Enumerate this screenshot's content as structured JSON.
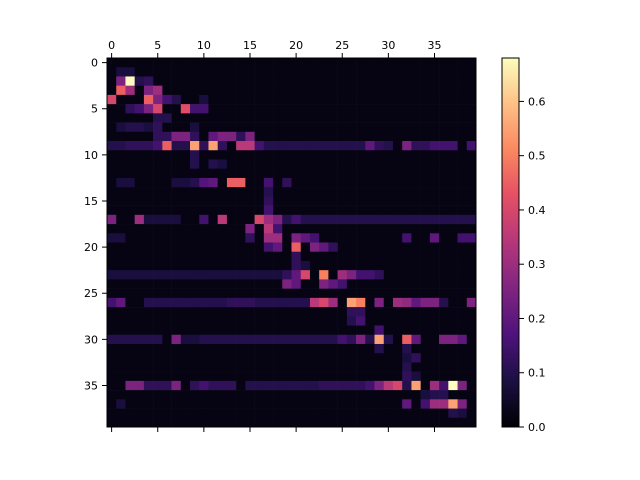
{
  "chart_data": {
    "type": "heatmap",
    "title": "",
    "xlabel": "",
    "ylabel": "",
    "rows": 40,
    "cols": 40,
    "x_axis_position": "top",
    "x_ticks": [
      0,
      5,
      10,
      15,
      20,
      25,
      30,
      35
    ],
    "y_ticks": [
      0,
      5,
      10,
      15,
      20,
      25,
      30,
      35
    ],
    "grid": false,
    "colormap": "magma",
    "colorbar": {
      "vmin": 0.0,
      "vmax": 0.68,
      "ticks": [
        0.0,
        0.1,
        0.2,
        0.3,
        0.4,
        0.5,
        0.6
      ],
      "tick_labels": [
        "0.0",
        "0.1",
        "0.2",
        "0.3",
        "0.4",
        "0.5",
        "0.6"
      ],
      "placement": "right"
    },
    "background_value": 0.02,
    "cells": [
      [
        1,
        1,
        0.08
      ],
      [
        1,
        2,
        0.08
      ],
      [
        2,
        1,
        0.25
      ],
      [
        2,
        2,
        0.68
      ],
      [
        2,
        3,
        0.1
      ],
      [
        2,
        4,
        0.12
      ],
      [
        3,
        1,
        0.45
      ],
      [
        3,
        2,
        0.3
      ],
      [
        3,
        4,
        0.25
      ],
      [
        3,
        5,
        0.3
      ],
      [
        4,
        0,
        0.4
      ],
      [
        4,
        4,
        0.45
      ],
      [
        4,
        5,
        0.25
      ],
      [
        4,
        6,
        0.15
      ],
      [
        4,
        7,
        0.1
      ],
      [
        4,
        10,
        0.08
      ],
      [
        5,
        2,
        0.12
      ],
      [
        5,
        3,
        0.15
      ],
      [
        5,
        4,
        0.25
      ],
      [
        5,
        5,
        0.4
      ],
      [
        5,
        8,
        0.42
      ],
      [
        5,
        9,
        0.15
      ],
      [
        5,
        10,
        0.15
      ],
      [
        6,
        5,
        0.1
      ],
      [
        6,
        6,
        0.1
      ],
      [
        7,
        1,
        0.08
      ],
      [
        7,
        2,
        0.1
      ],
      [
        7,
        3,
        0.1
      ],
      [
        7,
        4,
        0.08
      ],
      [
        7,
        5,
        0.12
      ],
      [
        7,
        9,
        0.08
      ],
      [
        8,
        5,
        0.12
      ],
      [
        8,
        6,
        0.12
      ],
      [
        8,
        7,
        0.25
      ],
      [
        8,
        8,
        0.25
      ],
      [
        8,
        9,
        0.12
      ],
      [
        8,
        11,
        0.2
      ],
      [
        8,
        12,
        0.25
      ],
      [
        8,
        13,
        0.25
      ],
      [
        8,
        14,
        0.12
      ],
      [
        8,
        15,
        0.25
      ],
      [
        9,
        0,
        0.1
      ],
      [
        9,
        1,
        0.1
      ],
      [
        9,
        2,
        0.12
      ],
      [
        9,
        3,
        0.12
      ],
      [
        9,
        4,
        0.12
      ],
      [
        9,
        5,
        0.15
      ],
      [
        9,
        6,
        0.45
      ],
      [
        9,
        7,
        0.1
      ],
      [
        9,
        8,
        0.1
      ],
      [
        9,
        9,
        0.55
      ],
      [
        9,
        10,
        0.12
      ],
      [
        9,
        11,
        0.55
      ],
      [
        9,
        12,
        0.12
      ],
      [
        9,
        14,
        0.35
      ],
      [
        9,
        15,
        0.35
      ],
      [
        9,
        16,
        0.15
      ],
      [
        9,
        17,
        0.1
      ],
      [
        9,
        18,
        0.1
      ],
      [
        9,
        19,
        0.1
      ],
      [
        9,
        20,
        0.1
      ],
      [
        9,
        21,
        0.1
      ],
      [
        9,
        22,
        0.1
      ],
      [
        9,
        23,
        0.1
      ],
      [
        9,
        24,
        0.1
      ],
      [
        9,
        25,
        0.1
      ],
      [
        9,
        26,
        0.1
      ],
      [
        9,
        27,
        0.1
      ],
      [
        9,
        28,
        0.2
      ],
      [
        9,
        29,
        0.12
      ],
      [
        9,
        30,
        0.1
      ],
      [
        9,
        32,
        0.25
      ],
      [
        9,
        33,
        0.12
      ],
      [
        9,
        34,
        0.12
      ],
      [
        9,
        35,
        0.15
      ],
      [
        9,
        36,
        0.15
      ],
      [
        9,
        37,
        0.15
      ],
      [
        9,
        39,
        0.15
      ],
      [
        10,
        9,
        0.1
      ],
      [
        11,
        9,
        0.1
      ],
      [
        11,
        11,
        0.1
      ],
      [
        11,
        12,
        0.08
      ],
      [
        13,
        1,
        0.08
      ],
      [
        13,
        2,
        0.08
      ],
      [
        13,
        7,
        0.08
      ],
      [
        13,
        8,
        0.08
      ],
      [
        13,
        9,
        0.1
      ],
      [
        13,
        10,
        0.18
      ],
      [
        13,
        11,
        0.2
      ],
      [
        13,
        13,
        0.45
      ],
      [
        13,
        14,
        0.45
      ],
      [
        13,
        17,
        0.15
      ],
      [
        13,
        19,
        0.12
      ],
      [
        14,
        17,
        0.1
      ],
      [
        15,
        17,
        0.12
      ],
      [
        16,
        17,
        0.15
      ],
      [
        17,
        0,
        0.25
      ],
      [
        17,
        3,
        0.3
      ],
      [
        17,
        4,
        0.08
      ],
      [
        17,
        5,
        0.08
      ],
      [
        17,
        6,
        0.08
      ],
      [
        17,
        7,
        0.08
      ],
      [
        17,
        10,
        0.15
      ],
      [
        17,
        12,
        0.35
      ],
      [
        17,
        16,
        0.4
      ],
      [
        17,
        17,
        0.3
      ],
      [
        17,
        18,
        0.25
      ],
      [
        17,
        19,
        0.1
      ],
      [
        17,
        20,
        0.15
      ],
      [
        17,
        21,
        0.1
      ],
      [
        17,
        22,
        0.1
      ],
      [
        17,
        23,
        0.1
      ],
      [
        17,
        24,
        0.1
      ],
      [
        17,
        25,
        0.1
      ],
      [
        17,
        26,
        0.1
      ],
      [
        17,
        27,
        0.1
      ],
      [
        17,
        28,
        0.1
      ],
      [
        17,
        29,
        0.1
      ],
      [
        17,
        30,
        0.1
      ],
      [
        17,
        31,
        0.1
      ],
      [
        17,
        32,
        0.1
      ],
      [
        17,
        33,
        0.1
      ],
      [
        17,
        34,
        0.1
      ],
      [
        17,
        35,
        0.1
      ],
      [
        17,
        36,
        0.1
      ],
      [
        17,
        37,
        0.1
      ],
      [
        17,
        38,
        0.1
      ],
      [
        17,
        39,
        0.1
      ],
      [
        18,
        15,
        0.25
      ],
      [
        18,
        17,
        0.35
      ],
      [
        18,
        18,
        0.15
      ],
      [
        19,
        0,
        0.08
      ],
      [
        19,
        1,
        0.08
      ],
      [
        19,
        15,
        0.12
      ],
      [
        19,
        17,
        0.3
      ],
      [
        19,
        18,
        0.3
      ],
      [
        19,
        20,
        0.25
      ],
      [
        19,
        21,
        0.2
      ],
      [
        19,
        22,
        0.15
      ],
      [
        19,
        32,
        0.15
      ],
      [
        19,
        35,
        0.2
      ],
      [
        19,
        38,
        0.15
      ],
      [
        19,
        39,
        0.15
      ],
      [
        20,
        17,
        0.15
      ],
      [
        20,
        18,
        0.2
      ],
      [
        20,
        20,
        0.45
      ],
      [
        20,
        22,
        0.25
      ],
      [
        20,
        23,
        0.2
      ],
      [
        20,
        24,
        0.12
      ],
      [
        21,
        20,
        0.12
      ],
      [
        22,
        20,
        0.12
      ],
      [
        22,
        21,
        0.08
      ],
      [
        23,
        0,
        0.08
      ],
      [
        23,
        1,
        0.08
      ],
      [
        23,
        2,
        0.08
      ],
      [
        23,
        3,
        0.08
      ],
      [
        23,
        4,
        0.08
      ],
      [
        23,
        5,
        0.08
      ],
      [
        23,
        6,
        0.08
      ],
      [
        23,
        7,
        0.08
      ],
      [
        23,
        8,
        0.08
      ],
      [
        23,
        9,
        0.08
      ],
      [
        23,
        10,
        0.08
      ],
      [
        23,
        11,
        0.08
      ],
      [
        23,
        12,
        0.08
      ],
      [
        23,
        13,
        0.08
      ],
      [
        23,
        14,
        0.08
      ],
      [
        23,
        15,
        0.08
      ],
      [
        23,
        16,
        0.08
      ],
      [
        23,
        17,
        0.08
      ],
      [
        23,
        18,
        0.08
      ],
      [
        23,
        19,
        0.12
      ],
      [
        23,
        20,
        0.2
      ],
      [
        23,
        21,
        0.4
      ],
      [
        23,
        23,
        0.5
      ],
      [
        23,
        25,
        0.3
      ],
      [
        23,
        26,
        0.25
      ],
      [
        23,
        27,
        0.15
      ],
      [
        23,
        28,
        0.15
      ],
      [
        23,
        29,
        0.12
      ],
      [
        24,
        19,
        0.25
      ],
      [
        24,
        20,
        0.2
      ],
      [
        24,
        23,
        0.25
      ],
      [
        24,
        24,
        0.2
      ],
      [
        24,
        25,
        0.15
      ],
      [
        26,
        0,
        0.15
      ],
      [
        26,
        1,
        0.2
      ],
      [
        26,
        4,
        0.1
      ],
      [
        26,
        5,
        0.1
      ],
      [
        26,
        6,
        0.1
      ],
      [
        26,
        7,
        0.1
      ],
      [
        26,
        8,
        0.1
      ],
      [
        26,
        9,
        0.1
      ],
      [
        26,
        10,
        0.1
      ],
      [
        26,
        11,
        0.1
      ],
      [
        26,
        12,
        0.1
      ],
      [
        26,
        13,
        0.12
      ],
      [
        26,
        14,
        0.12
      ],
      [
        26,
        15,
        0.12
      ],
      [
        26,
        16,
        0.1
      ],
      [
        26,
        17,
        0.1
      ],
      [
        26,
        18,
        0.1
      ],
      [
        26,
        19,
        0.1
      ],
      [
        26,
        20,
        0.1
      ],
      [
        26,
        21,
        0.1
      ],
      [
        26,
        22,
        0.35
      ],
      [
        26,
        23,
        0.4
      ],
      [
        26,
        24,
        0.3
      ],
      [
        26,
        26,
        0.55
      ],
      [
        26,
        27,
        0.5
      ],
      [
        26,
        29,
        0.25
      ],
      [
        26,
        31,
        0.3
      ],
      [
        26,
        32,
        0.28
      ],
      [
        26,
        33,
        0.2
      ],
      [
        26,
        34,
        0.25
      ],
      [
        26,
        35,
        0.25
      ],
      [
        26,
        36,
        0.1
      ],
      [
        26,
        39,
        0.25
      ],
      [
        27,
        26,
        0.12
      ],
      [
        27,
        27,
        0.12
      ],
      [
        28,
        26,
        0.1
      ],
      [
        28,
        27,
        0.15
      ],
      [
        29,
        29,
        0.15
      ],
      [
        30,
        0,
        0.1
      ],
      [
        30,
        1,
        0.1
      ],
      [
        30,
        2,
        0.1
      ],
      [
        30,
        3,
        0.1
      ],
      [
        30,
        4,
        0.1
      ],
      [
        30,
        5,
        0.1
      ],
      [
        30,
        7,
        0.25
      ],
      [
        30,
        8,
        0.08
      ],
      [
        30,
        9,
        0.08
      ],
      [
        30,
        10,
        0.1
      ],
      [
        30,
        11,
        0.1
      ],
      [
        30,
        12,
        0.1
      ],
      [
        30,
        13,
        0.1
      ],
      [
        30,
        14,
        0.1
      ],
      [
        30,
        15,
        0.1
      ],
      [
        30,
        16,
        0.1
      ],
      [
        30,
        17,
        0.1
      ],
      [
        30,
        18,
        0.1
      ],
      [
        30,
        19,
        0.1
      ],
      [
        30,
        20,
        0.1
      ],
      [
        30,
        21,
        0.1
      ],
      [
        30,
        22,
        0.1
      ],
      [
        30,
        23,
        0.1
      ],
      [
        30,
        24,
        0.1
      ],
      [
        30,
        25,
        0.15
      ],
      [
        30,
        26,
        0.12
      ],
      [
        30,
        27,
        0.25
      ],
      [
        30,
        28,
        0.1
      ],
      [
        30,
        29,
        0.55
      ],
      [
        30,
        30,
        0.1
      ],
      [
        30,
        32,
        0.45
      ],
      [
        30,
        33,
        0.2
      ],
      [
        30,
        36,
        0.25
      ],
      [
        30,
        37,
        0.25
      ],
      [
        30,
        38,
        0.2
      ],
      [
        31,
        29,
        0.1
      ],
      [
        31,
        32,
        0.1
      ],
      [
        32,
        32,
        0.08
      ],
      [
        32,
        33,
        0.12
      ],
      [
        33,
        32,
        0.1
      ],
      [
        34,
        32,
        0.12
      ],
      [
        34,
        33,
        0.08
      ],
      [
        35,
        2,
        0.25
      ],
      [
        35,
        3,
        0.25
      ],
      [
        35,
        4,
        0.12
      ],
      [
        35,
        5,
        0.12
      ],
      [
        35,
        6,
        0.12
      ],
      [
        35,
        7,
        0.25
      ],
      [
        35,
        9,
        0.12
      ],
      [
        35,
        10,
        0.15
      ],
      [
        35,
        11,
        0.12
      ],
      [
        35,
        12,
        0.12
      ],
      [
        35,
        13,
        0.12
      ],
      [
        35,
        15,
        0.1
      ],
      [
        35,
        16,
        0.1
      ],
      [
        35,
        17,
        0.1
      ],
      [
        35,
        18,
        0.1
      ],
      [
        35,
        19,
        0.1
      ],
      [
        35,
        20,
        0.1
      ],
      [
        35,
        21,
        0.1
      ],
      [
        35,
        22,
        0.1
      ],
      [
        35,
        23,
        0.12
      ],
      [
        35,
        24,
        0.12
      ],
      [
        35,
        25,
        0.12
      ],
      [
        35,
        26,
        0.12
      ],
      [
        35,
        27,
        0.12
      ],
      [
        35,
        28,
        0.15
      ],
      [
        35,
        29,
        0.25
      ],
      [
        35,
        30,
        0.35
      ],
      [
        35,
        31,
        0.4
      ],
      [
        35,
        32,
        0.1
      ],
      [
        35,
        33,
        0.55
      ],
      [
        35,
        35,
        0.3
      ],
      [
        35,
        36,
        0.15
      ],
      [
        35,
        37,
        0.68
      ],
      [
        35,
        38,
        0.25
      ],
      [
        36,
        34,
        0.08
      ],
      [
        36,
        35,
        0.1
      ],
      [
        36,
        36,
        0.1
      ],
      [
        37,
        1,
        0.08
      ],
      [
        37,
        32,
        0.2
      ],
      [
        37,
        34,
        0.15
      ],
      [
        37,
        35,
        0.3
      ],
      [
        37,
        36,
        0.3
      ],
      [
        37,
        37,
        0.55
      ],
      [
        37,
        38,
        0.25
      ],
      [
        38,
        37,
        0.1
      ],
      [
        38,
        38,
        0.08
      ]
    ]
  }
}
